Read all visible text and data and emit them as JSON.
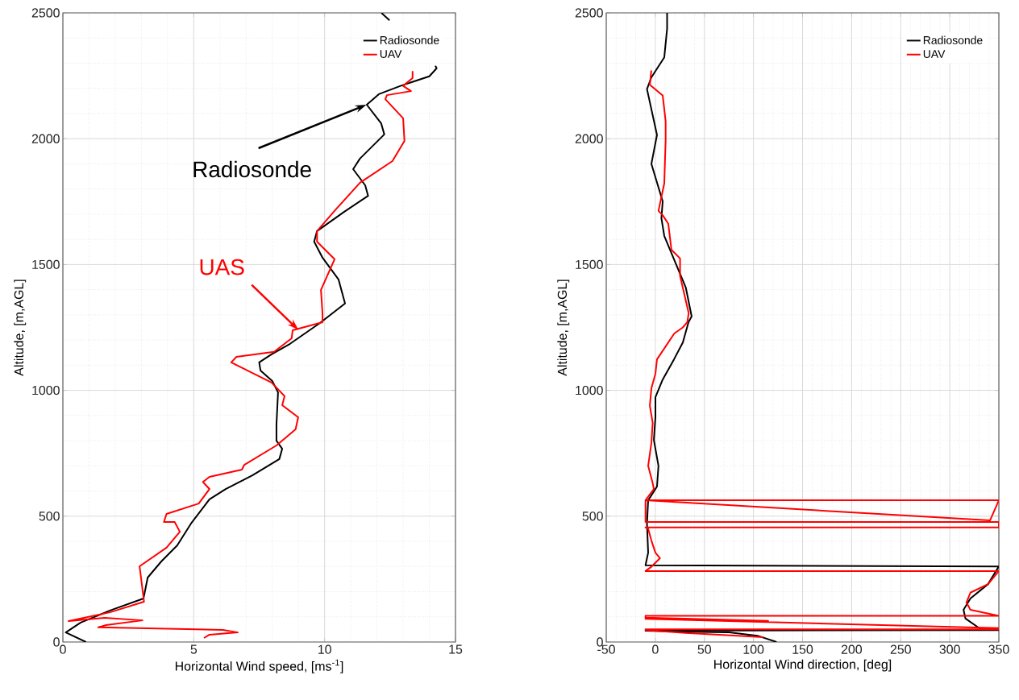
{
  "chart_data": [
    {
      "type": "line",
      "xlabel": "Horizontal Wind speed, [ms$^{-1}$]",
      "ylabel": "Altitude, [m,AGL]",
      "xlim": [
        0,
        15
      ],
      "ylim": [
        0,
        2500
      ],
      "xticks": [
        0,
        5,
        10,
        15
      ],
      "yticks": [
        0,
        500,
        1000,
        1500,
        2000,
        2500
      ],
      "grid": true,
      "legend": "top right",
      "series": [
        {
          "name": "Radiosonde",
          "color": "#000000",
          "x": [
            0.88,
            0.11,
            0.68,
            1.8,
            3.08,
            3.24,
            3.76,
            4.37,
            4.89,
            5.6,
            6.22,
            7.24,
            8.27,
            8.38,
            8.16,
            8.16,
            8.22,
            8.0,
            7.55,
            7.5,
            7.97,
            8.68,
            9.8,
            10.78,
            10.53,
            9.92,
            9.6,
            9.71,
            10.74,
            11.66,
            11.55,
            11.09,
            11.35,
            12.28,
            12.16,
            11.61,
            12.07,
            12.9,
            14.0,
            14.28,
            14.23,
            null,
            12.48,
            12.17
          ],
          "values": [
            0,
            38,
            77,
            125,
            173,
            256,
            320,
            384,
            470,
            567,
            608,
            662,
            727,
            768,
            800,
            864,
            992,
            1037,
            1079,
            1111,
            1143,
            1185,
            1266,
            1345,
            1441,
            1527,
            1591,
            1633,
            1709,
            1773,
            1815,
            1879,
            1921,
            2017,
            2061,
            2135,
            2177,
            2210,
            2248,
            2280,
            2290,
            null,
            2470,
            2500
          ]
        },
        {
          "name": "UAV",
          "color": "#ff0000",
          "x": [
            5.39,
            5.6,
            6.68,
            6.12,
            1.35,
            1.65,
            3.04,
            1.6,
            0.22,
            1.8,
            3.1,
            2.93,
            3.96,
            4.47,
            4.27,
            3.86,
            3.96,
            5.19,
            5.6,
            5.35,
            5.6,
            6.84,
            6.93,
            8.16,
            8.89,
            8.99,
            8.38,
            8.47,
            7.97,
            6.43,
            6.63,
            8.07,
            8.74,
            8.78,
            9.92,
            9.92,
            9.86,
            10.38,
            9.71,
            9.71,
            10.43,
            11.35,
            12.59,
            13.05,
            13.0,
            12.32,
            12.38,
            13.3,
            13.0,
            13.36,
            13.36
          ],
          "values": [
            16,
            29,
            38,
            48,
            58,
            67,
            86,
            96,
            83,
            118,
            160,
            301,
            375,
            438,
            477,
            477,
            509,
            550,
            608,
            636,
            656,
            685,
            704,
            781,
            845,
            893,
            941,
            977,
            1031,
            1111,
            1133,
            1153,
            1207,
            1239,
            1271,
            1303,
            1399,
            1521,
            1591,
            1633,
            1719,
            1825,
            1911,
            1991,
            2081,
            2157,
            2173,
            2189,
            2210,
            2241,
            2269
          ]
        }
      ],
      "annotations": [
        {
          "text": "Radiosonde",
          "x": 11.6,
          "y": 2135
        },
        {
          "text": "UAS",
          "x": 9.0,
          "y": 1240
        }
      ]
    },
    {
      "type": "line",
      "xlabel": "Horizontal Wind direction, [deg]",
      "ylabel": "Altitude, [m,AGL]",
      "xlim": [
        -50,
        350
      ],
      "ylim": [
        0,
        2500
      ],
      "xticks": [
        -50,
        0,
        50,
        100,
        150,
        200,
        250,
        300,
        350
      ],
      "yticks": [
        0,
        500,
        1000,
        1500,
        2000,
        2500
      ],
      "grid": true,
      "legend": "top right",
      "series": [
        {
          "name": "Radiosonde",
          "color": "#000000",
          "x": [
            123.5,
            104,
            75,
            31,
            -10,
            350,
            330,
            316,
            314,
            321,
            339,
            349,
            350,
            -10,
            -7.3,
            -8.5,
            -7.3,
            1.7,
            3.2,
            -1.5,
            0.1,
            0.1,
            7.5,
            19,
            28,
            33.8,
            37,
            31,
            9.1,
            6.2,
            7.5,
            -4,
            1.7,
            -8.5,
            -4.1,
            9.1,
            12,
            12
          ],
          "values": [
            0,
            25,
            38,
            41,
            45,
            47,
            55,
            93,
            128,
            173,
            230,
            294,
            300,
            305,
            355,
            470,
            563,
            618,
            700,
            803,
            893,
            973,
            1043,
            1123,
            1190,
            1271,
            1294,
            1409,
            1614,
            1684,
            1751,
            1900,
            2015,
            2197,
            2243,
            2323,
            2437,
            2500
          ]
        },
        {
          "name": "UAV",
          "color": "#ff0000",
          "x": [
            110,
            31,
            -10,
            -10,
            350,
            350,
            -10,
            -10,
            115,
            -10,
            -10,
            350,
            321,
            317,
            321,
            339,
            350,
            -10,
            -4,
            4.7,
            0.1,
            -4,
            -7.3,
            -10,
            350,
            350,
            -10,
            -10,
            341,
            350,
            -10,
            -1.5,
            -2.7,
            -7.3,
            -4,
            -2.7,
            -5.6,
            -4,
            0.1,
            1.7,
            19.3,
            28,
            32.6,
            34,
            25.2,
            25.2,
            16.4,
            13.2,
            7.5,
            3.2,
            9.1,
            10.5,
            10.5,
            7.5,
            -5.6,
            -4.1
          ],
          "values": [
            19,
            36,
            47,
            50,
            50,
            55,
            92,
            95,
            84,
            97,
            104,
            104,
            128,
            157,
            196,
            230,
            282,
            282,
            299,
            333,
            355,
            403,
            450,
            455,
            455,
            477,
            477,
            563,
            483,
            563,
            563,
            608,
            631,
            700,
            791,
            871,
            939,
            1008,
            1066,
            1123,
            1226,
            1250,
            1271,
            1307,
            1455,
            1524,
            1559,
            1662,
            1696,
            1713,
            1822,
            1994,
            2070,
            2172,
            2214,
            2271
          ]
        }
      ]
    }
  ]
}
